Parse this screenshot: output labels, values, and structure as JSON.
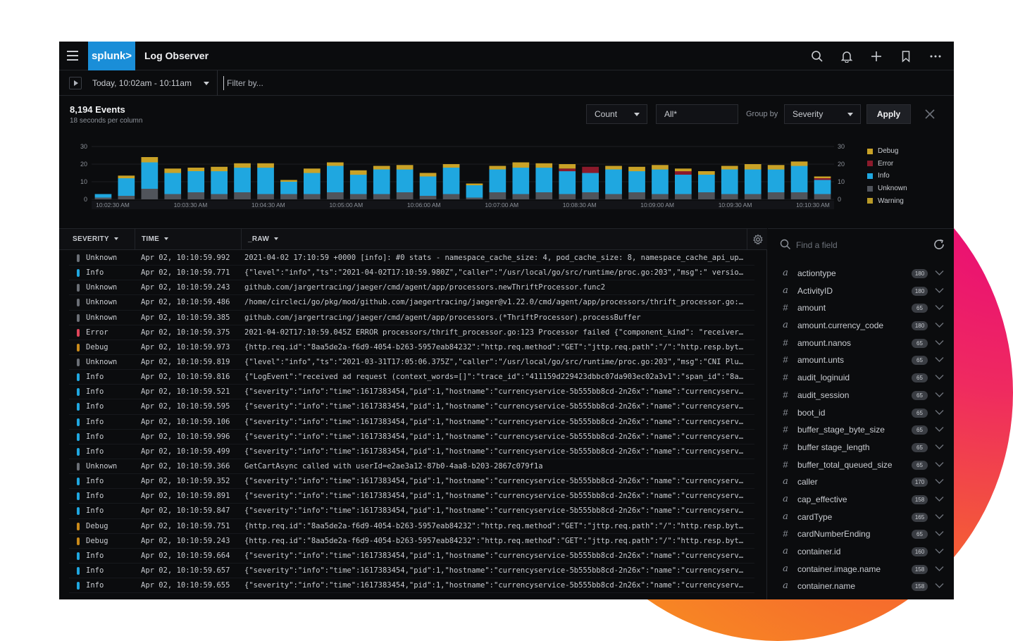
{
  "header": {
    "brand": "splunk>",
    "app_title": "Log Observer",
    "icons": [
      "search-icon",
      "bell-icon",
      "plus-icon",
      "bookmark-icon",
      "more-icon"
    ]
  },
  "toolbar": {
    "time_range": "Today, 10:02am - 10:11am",
    "filter_placeholder": "Filter by..."
  },
  "summary": {
    "events": "8,194 Events",
    "sub": "18 seconds per column"
  },
  "controls": {
    "metric": "Count",
    "scope": "All*",
    "group_by_label": "Group by",
    "group_by": "Severity",
    "apply": "Apply"
  },
  "legend": [
    {
      "name": "Debug",
      "color": "#c9a227"
    },
    {
      "name": "Error",
      "color": "#8b1a2b"
    },
    {
      "name": "Info",
      "color": "#1fa7e0"
    },
    {
      "name": "Unknown",
      "color": "#50545b"
    },
    {
      "name": "Warning",
      "color": "#b99a27"
    }
  ],
  "chart_data": {
    "type": "bar",
    "stacked": true,
    "ylim": [
      0,
      30
    ],
    "yticks": [
      0,
      10,
      20,
      30
    ],
    "x_tick_labels": [
      "10:02:30 AM",
      "10:03:30 AM",
      "10:04:30 AM",
      "10:05:00 AM",
      "10:06:00 AM",
      "10:07:00 AM",
      "10:08:30 AM",
      "10:09:00 AM",
      "10:09:30 AM",
      "10:10:30 AM"
    ],
    "series": [
      {
        "name": "Unknown",
        "color": "#50545b",
        "values": [
          1,
          2,
          6,
          3,
          4,
          3,
          4,
          3,
          3,
          3,
          4,
          3,
          3,
          4,
          2,
          3,
          1,
          4,
          3,
          4,
          3,
          4,
          3,
          4,
          3,
          3,
          4,
          3,
          3,
          4,
          4,
          3
        ]
      },
      {
        "name": "Info",
        "color": "#1fa7e0",
        "values": [
          2,
          10,
          15,
          12,
          12,
          13,
          14,
          15,
          7,
          12,
          15,
          11,
          14,
          13,
          11,
          15,
          7,
          13,
          15,
          14,
          13,
          11,
          14,
          12,
          14,
          11,
          10,
          14,
          14,
          13,
          15,
          8
        ]
      },
      {
        "name": "Error",
        "color": "#8b1a2b",
        "values": [
          0,
          0,
          0,
          0,
          0,
          0,
          0,
          0,
          0,
          0,
          0,
          0,
          0,
          0,
          0,
          0,
          0,
          0,
          0,
          0,
          1.5,
          3.5,
          0,
          0,
          0,
          2,
          0,
          0,
          0,
          0,
          0,
          1
        ]
      },
      {
        "name": "Debug",
        "color": "#c9a227",
        "values": [
          0,
          1.5,
          3,
          2.5,
          2,
          2.5,
          2.5,
          2.5,
          1,
          2.5,
          2,
          2.5,
          2,
          2.5,
          2,
          2,
          1,
          2,
          3,
          2.5,
          2.5,
          0,
          2,
          2.5,
          2.5,
          1.5,
          2,
          2,
          3,
          2.5,
          2.5,
          1
        ]
      }
    ]
  },
  "table": {
    "columns": [
      "SEVERITY",
      "TIME",
      "_RAW"
    ],
    "rows": [
      {
        "sev": "Unknown",
        "color": "#6b6f76",
        "time": "Apr 02, 10:10:59.992",
        "raw": "2021-04-02 17:10:59 +0000 [info]: #0 stats - namespace_cache_size: 4, pod_cache_size: 8, namespace_cache_api_upd..."
      },
      {
        "sev": "Info",
        "color": "#1fa7e0",
        "time": "Apr 02, 10:10:59.771",
        "raw": "{\"level\":\"info\",\"ts\":\"2021-04-02T17:10:59.980Z\",\"caller\":\"/usr/local/go/src/runtime/proc.go:203\",\"msg\":\" version..."
      },
      {
        "sev": "Unknown",
        "color": "#6b6f76",
        "time": "Apr 02, 10:10:59.243",
        "raw": "github.com/jargertracing/jaeger/cmd/agent/app/processors.newThriftProcessor.func2"
      },
      {
        "sev": "Unknown",
        "color": "#6b6f76",
        "time": "Apr 02, 10:10:59.486",
        "raw": "/home/circleci/go/pkg/mod/github.com/jaegertracing/jaeger@v1.22.0/cmd/agent/app/processors/thrift_processor.go:123"
      },
      {
        "sev": "Unknown",
        "color": "#6b6f76",
        "time": "Apr 02, 10:10:59.385",
        "raw": "github.com/jargertracing/jaeger/cmd/agent/app/processors.(*ThriftProcessor).processBuffer"
      },
      {
        "sev": "Error",
        "color": "#e0455a",
        "time": "Apr 02, 10:10:59.375",
        "raw": "2021-04-02T17:10:59.045Z ERROR processors/thrift_processor.go:123 Processor failed {\"component_kind\": \"receiver\"..."
      },
      {
        "sev": "Debug",
        "color": "#c98a1a",
        "time": "Apr 02, 10:10:59.973",
        "raw": "{http.req.id\":\"8aa5de2a-f6d9-4054-b263-5957eab84232\":\"http.req.method\":\"GET\":\"jttp.req.path\":\"/\":\"http.resp.byte..."
      },
      {
        "sev": "Unknown",
        "color": "#6b6f76",
        "time": "Apr 02, 10:10:59.819",
        "raw": "{\"level\":\"info\",\"ts\":\"2021-03-31T17:05:06.375Z\",\"caller\":\"/usr/local/go/src/runtime/proc.go:203\",\"msg\":\"CNI Plug..."
      },
      {
        "sev": "Info",
        "color": "#1fa7e0",
        "time": "Apr 02, 10:10:59.816",
        "raw": "{\"LogEvent\":\"received ad request (context_words=[]\":\"trace_id\":\"411159d229423dbbc07da903ec02a3v1\":\"span_id\":\"8a5..."
      },
      {
        "sev": "Info",
        "color": "#1fa7e0",
        "time": "Apr 02, 10:10:59.521",
        "raw": "{\"severity\":\"info\":\"time\":1617383454,\"pid\":1,\"hostname\":\"currencyservice-5b555bb8cd-2n26x\":\"name\":\"currencyservi..."
      },
      {
        "sev": "Info",
        "color": "#1fa7e0",
        "time": "Apr 02, 10:10:59.595",
        "raw": "{\"severity\":\"info\":\"time\":1617383454,\"pid\":1,\"hostname\":\"currencyservice-5b555bb8cd-2n26x\":\"name\":\"currencyservi..."
      },
      {
        "sev": "Info",
        "color": "#1fa7e0",
        "time": "Apr 02, 10:10:59.106",
        "raw": "{\"severity\":\"info\":\"time\":1617383454,\"pid\":1,\"hostname\":\"currencyservice-5b555bb8cd-2n26x\":\"name\":\"currencyservi..."
      },
      {
        "sev": "Info",
        "color": "#1fa7e0",
        "time": "Apr 02, 10:10:59.996",
        "raw": "{\"severity\":\"info\":\"time\":1617383454,\"pid\":1,\"hostname\":\"currencyservice-5b555bb8cd-2n26x\":\"name\":\"currencyservi..."
      },
      {
        "sev": "Info",
        "color": "#1fa7e0",
        "time": "Apr 02, 10:10:59.499",
        "raw": "{\"severity\":\"info\":\"time\":1617383454,\"pid\":1,\"hostname\":\"currencyservice-5b555bb8cd-2n26x\":\"name\":\"currencyservi..."
      },
      {
        "sev": "Unknown",
        "color": "#6b6f76",
        "time": "Apr 02, 10:10:59.366",
        "raw": "GetCartAsync called with userId=e2ae3a12-87b0-4aa8-b203-2867c079f1a"
      },
      {
        "sev": "Info",
        "color": "#1fa7e0",
        "time": "Apr 02, 10:10:59.352",
        "raw": "{\"severity\":\"info\":\"time\":1617383454,\"pid\":1,\"hostname\":\"currencyservice-5b555bb8cd-2n26x\":\"name\":\"currencyservi..."
      },
      {
        "sev": "Info",
        "color": "#1fa7e0",
        "time": "Apr 02, 10:10:59.891",
        "raw": "{\"severity\":\"info\":\"time\":1617383454,\"pid\":1,\"hostname\":\"currencyservice-5b555bb8cd-2n26x\":\"name\":\"currencyservi..."
      },
      {
        "sev": "Info",
        "color": "#1fa7e0",
        "time": "Apr 02, 10:10:59.847",
        "raw": "{\"severity\":\"info\":\"time\":1617383454,\"pid\":1,\"hostname\":\"currencyservice-5b555bb8cd-2n26x\":\"name\":\"currencyservi..."
      },
      {
        "sev": "Debug",
        "color": "#c98a1a",
        "time": "Apr 02, 10:10:59.751",
        "raw": "{http.req.id\":\"8aa5de2a-f6d9-4054-b263-5957eab84232\":\"http.req.method\":\"GET\":\"jttp.req.path\":\"/\":\"http.resp.byte..."
      },
      {
        "sev": "Debug",
        "color": "#c98a1a",
        "time": "Apr 02, 10:10:59.243",
        "raw": "{http.req.id\":\"8aa5de2a-f6d9-4054-b263-5957eab84232\":\"http.req.method\":\"GET\":\"jttp.req.path\":\"/\":\"http.resp.byte..."
      },
      {
        "sev": "Info",
        "color": "#1fa7e0",
        "time": "Apr 02, 10:10:59.664",
        "raw": "{\"severity\":\"info\":\"time\":1617383454,\"pid\":1,\"hostname\":\"currencyservice-5b555bb8cd-2n26x\":\"name\":\"currencyservi..."
      },
      {
        "sev": "Info",
        "color": "#1fa7e0",
        "time": "Apr 02, 10:10:59.657",
        "raw": "{\"severity\":\"info\":\"time\":1617383454,\"pid\":1,\"hostname\":\"currencyservice-5b555bb8cd-2n26x\":\"name\":\"currencyservi..."
      },
      {
        "sev": "Info",
        "color": "#1fa7e0",
        "time": "Apr 02, 10:10:59.655",
        "raw": "{\"severity\":\"info\":\"time\":1617383454,\"pid\":1,\"hostname\":\"currencyservice-5b555bb8cd-2n26x\":\"name\":\"currencyservi..."
      }
    ]
  },
  "fields_panel": {
    "placeholder": "Find a field",
    "fields": [
      {
        "type": "a",
        "name": "actiontype",
        "count": "180"
      },
      {
        "type": "a",
        "name": "ActivityID",
        "count": "180"
      },
      {
        "type": "#",
        "name": "amount",
        "count": "65"
      },
      {
        "type": "a",
        "name": "amount.currency_code",
        "count": "180"
      },
      {
        "type": "#",
        "name": "amount.nanos",
        "count": "65"
      },
      {
        "type": "#",
        "name": "amount.unts",
        "count": "65"
      },
      {
        "type": "#",
        "name": "audit_loginuid",
        "count": "65"
      },
      {
        "type": "#",
        "name": "audit_session",
        "count": "65"
      },
      {
        "type": "#",
        "name": "boot_id",
        "count": "65"
      },
      {
        "type": "#",
        "name": "buffer_stage_byte_size",
        "count": "65"
      },
      {
        "type": "#",
        "name": "buffer stage_length",
        "count": "65"
      },
      {
        "type": "#",
        "name": "buffer_total_queued_size",
        "count": "65"
      },
      {
        "type": "a",
        "name": "caller",
        "count": "170"
      },
      {
        "type": "a",
        "name": "cap_effective",
        "count": "158"
      },
      {
        "type": "a",
        "name": "cardType",
        "count": "165"
      },
      {
        "type": "#",
        "name": "cardNumberEnding",
        "count": "65"
      },
      {
        "type": "a",
        "name": "container.id",
        "count": "160"
      },
      {
        "type": "a",
        "name": "container.image.name",
        "count": "158"
      },
      {
        "type": "a",
        "name": "container.name",
        "count": "158"
      }
    ]
  }
}
